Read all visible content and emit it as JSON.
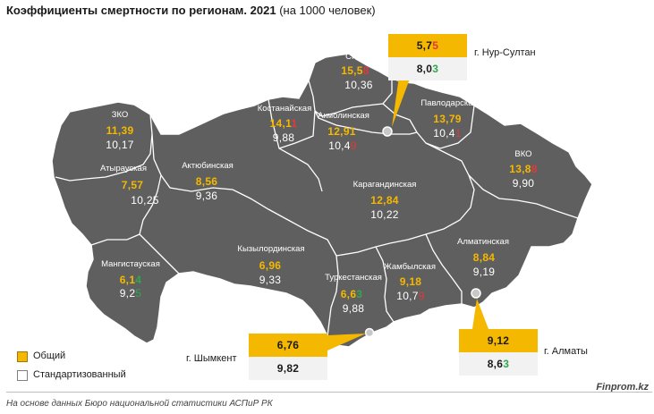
{
  "title": {
    "main": "Коэффициенты смертности по регионам. 2021",
    "unit": " (на 1000 человек)"
  },
  "colors": {
    "map_fill": "#5f5f5f",
    "border": "#ffffff",
    "general": "#f5b800",
    "standardized_box": "#f2f2f2",
    "higher": "#e0393e",
    "lower": "#2fa84f"
  },
  "regions": [
    {
      "id": "zko",
      "name": "ЗКО",
      "gen_a": "11,39",
      "gen_b": "",
      "std_a": "10,17",
      "std_b": "",
      "std_b_color": "w",
      "gen_b_color": "y"
    },
    {
      "id": "atyrau",
      "name": "Атырауская",
      "gen_a": "7,57",
      "gen_b": "",
      "std_a": "10,25",
      "std_b": "",
      "std_b_color": "w",
      "gen_b_color": "y"
    },
    {
      "id": "mangistau",
      "name": "Мангистауская",
      "gen_a": "6,1",
      "gen_b": "4",
      "std_a": "9,2",
      "std_b": "5",
      "gen_b_color": "g",
      "std_b_color": "g"
    },
    {
      "id": "aktobe",
      "name": "Актюбинская",
      "gen_a": "8,56",
      "gen_b": "",
      "std_a": "9,36",
      "std_b": "",
      "std_b_color": "w",
      "gen_b_color": "y"
    },
    {
      "id": "kostanay",
      "name": "Костанайская",
      "gen_a": "14,1",
      "gen_b": "1",
      "std_a": "9,88",
      "std_b": "",
      "gen_b_color": "r",
      "std_b_color": "w"
    },
    {
      "id": "sko",
      "name": "СКО",
      "gen_a": "15,5",
      "gen_b": "8",
      "std_a": "10,36",
      "std_b": "",
      "gen_b_color": "r",
      "std_b_color": "w"
    },
    {
      "id": "akmola",
      "name": "Акмолинская",
      "gen_a": "12,91",
      "gen_b": "",
      "std_a": "10,4",
      "std_b": "9",
      "gen_b_color": "y",
      "std_b_color": "r"
    },
    {
      "id": "pavlodar",
      "name": "Павлодарская",
      "gen_a": "13,79",
      "gen_b": "",
      "std_a": "10,4",
      "std_b": "1",
      "gen_b_color": "y",
      "std_b_color": "r"
    },
    {
      "id": "vko",
      "name": "ВКО",
      "gen_a": "13,8",
      "gen_b": "8",
      "std_a": "9,90",
      "std_b": "",
      "gen_b_color": "r",
      "std_b_color": "w"
    },
    {
      "id": "karaganda",
      "name": "Карагандинская",
      "gen_a": "12,84",
      "gen_b": "",
      "std_a": "10,22",
      "std_b": "",
      "gen_b_color": "y",
      "std_b_color": "w"
    },
    {
      "id": "kyzylorda",
      "name": "Кызылординская",
      "gen_a": "6,96",
      "gen_b": "",
      "std_a": "9,33",
      "std_b": "",
      "gen_b_color": "y",
      "std_b_color": "w"
    },
    {
      "id": "turkestan",
      "name": "Туркестанская",
      "gen_a": "6,6",
      "gen_b": "3",
      "std_a": "9,88",
      "std_b": "",
      "gen_b_color": "g",
      "std_b_color": "w"
    },
    {
      "id": "zhambyl",
      "name": "Жамбылская",
      "gen_a": "9,18",
      "gen_b": "",
      "std_a": "10,7",
      "std_b": "9",
      "gen_b_color": "y",
      "std_b_color": "r"
    },
    {
      "id": "almaty_reg",
      "name": "Алматинская",
      "gen_a": "8,84",
      "gen_b": "",
      "std_a": "9,19",
      "std_b": "",
      "gen_b_color": "y",
      "std_b_color": "w"
    }
  ],
  "cities": {
    "nursultan": {
      "label": "г. Нур-Султан",
      "gen_a": "5,7",
      "gen_b": "5",
      "std_a": "8,0",
      "std_b": "3"
    },
    "shymkent": {
      "label": "г. Шымкент",
      "gen": "6,76",
      "std": "9,82"
    },
    "almaty": {
      "label": "г. Алматы",
      "gen": "9,12",
      "std_a": "8,6",
      "std_b": "3"
    }
  },
  "legend": {
    "general": "Общий",
    "standardized": "Стандартизованный"
  },
  "source": "На основе данных Бюро национальной статистики АСПиР РК",
  "brand": "Finprom.kz"
}
